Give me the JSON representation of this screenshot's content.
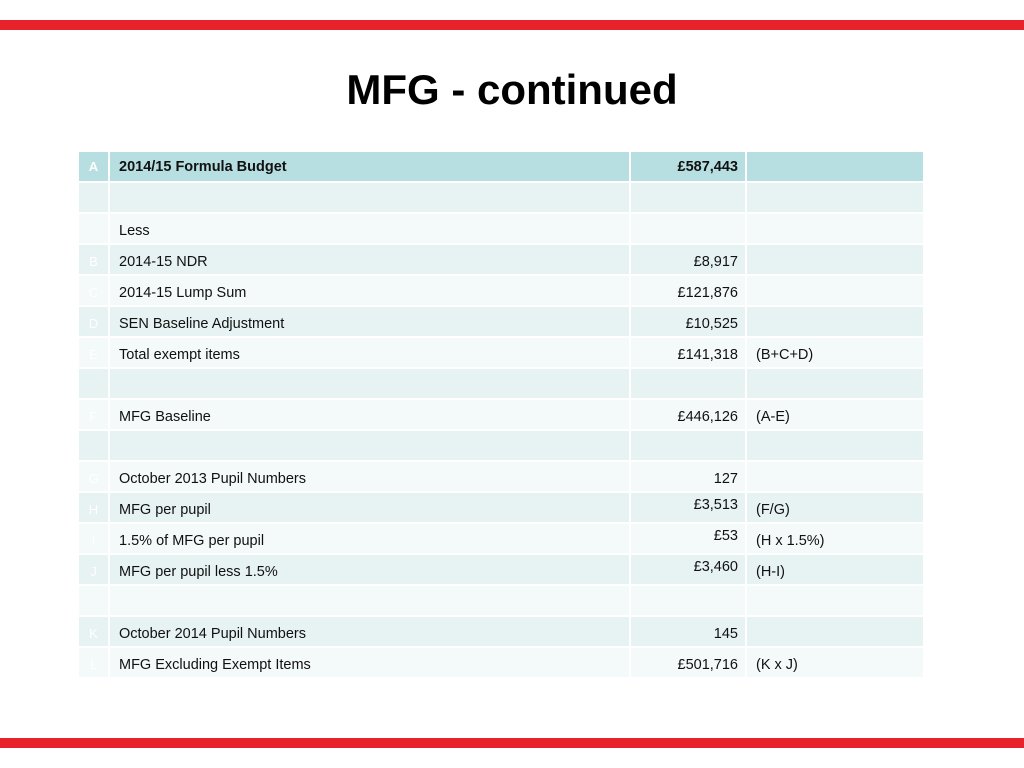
{
  "title": "MFG - continued",
  "colors": {
    "accent_bar": "#e8222a",
    "header_row": "#b7dfe2",
    "row_odd": "#e7f2f3",
    "row_even": "#f4f9f9"
  },
  "table": {
    "rows": [
      {
        "code": "A",
        "desc": "2014/15 Formula Budget",
        "value": "£587,443",
        "note": ""
      },
      {
        "code": "",
        "desc": "",
        "value": "",
        "note": ""
      },
      {
        "code": "",
        "desc": "Less",
        "value": "",
        "note": ""
      },
      {
        "code": "B",
        "desc": "2014-15  NDR",
        "value": "£8,917",
        "note": ""
      },
      {
        "code": "C",
        "desc": "2014-15 Lump Sum",
        "value": "£121,876",
        "note": ""
      },
      {
        "code": "D",
        "desc": "SEN Baseline Adjustment",
        "value": "£10,525",
        "note": ""
      },
      {
        "code": "E",
        "desc": "Total exempt items",
        "value": "£141,318",
        "note": "(B+C+D)"
      },
      {
        "code": "",
        "desc": "",
        "value": "",
        "note": ""
      },
      {
        "code": "F",
        "desc": "MFG Baseline",
        "value": "£446,126",
        "note": "(A-E)"
      },
      {
        "code": "",
        "desc": "",
        "value": "",
        "note": ""
      },
      {
        "code": "G",
        "desc": "October 2013 Pupil Numbers",
        "value": "127",
        "note": ""
      },
      {
        "code": "H",
        "desc": "MFG per pupil",
        "value": "£3,513",
        "note": "(F/G)"
      },
      {
        "code": "I",
        "desc": "1.5% of MFG per pupil",
        "value": "£53",
        "note": "(H x 1.5%)"
      },
      {
        "code": "J",
        "desc": "MFG per pupil less 1.5%",
        "value": "£3,460",
        "note": "(H-I)"
      },
      {
        "code": "",
        "desc": "",
        "value": "",
        "note": ""
      },
      {
        "code": "K",
        "desc": "October 2014 Pupil Numbers",
        "value": "145",
        "note": ""
      },
      {
        "code": "L",
        "desc": "MFG Excluding Exempt Items",
        "value": "£501,716",
        "note": "(K x J)"
      }
    ]
  }
}
